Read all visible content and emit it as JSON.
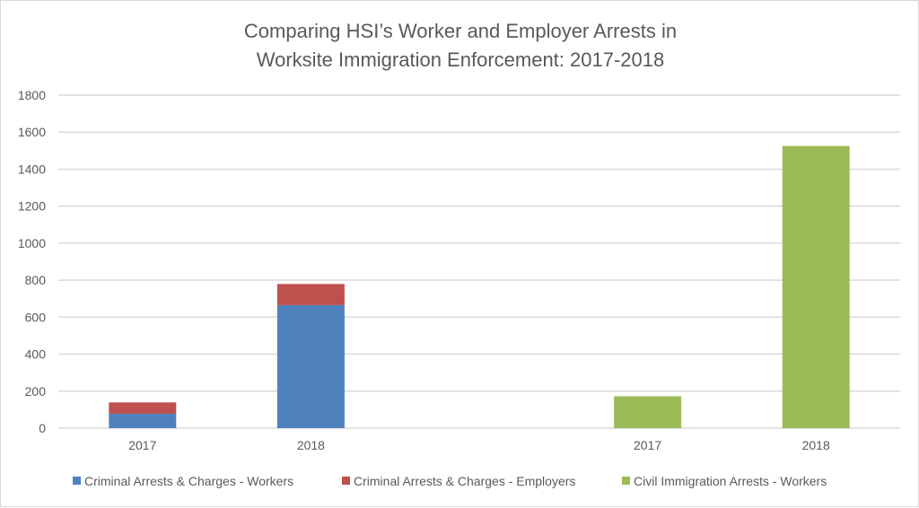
{
  "chart_data": {
    "type": "bar",
    "stacked": true,
    "title": [
      "Comparing HSI’s Worker and Employer Arrests in",
      "Worksite Immigration Enforcement: 2017-2018"
    ],
    "categories": [
      "2017",
      "2018",
      "",
      "2017",
      "2018"
    ],
    "series": [
      {
        "name": "Criminal Arrests & Charges - Workers",
        "color": "#4f81bd",
        "values": [
          78,
          665,
          null,
          null,
          null
        ]
      },
      {
        "name": "Criminal Arrests & Charges - Employers",
        "color": "#c0504d",
        "values": [
          61,
          114,
          null,
          null,
          null
        ]
      },
      {
        "name": "Civil Immigration Arrests - Workers",
        "color": "#9bbb59",
        "values": [
          null,
          null,
          null,
          172,
          1525
        ]
      }
    ],
    "ylim": [
      0,
      1800
    ],
    "yticks": [
      0,
      200,
      400,
      600,
      800,
      1000,
      1200,
      1400,
      1600,
      1800
    ],
    "grid": true,
    "legend": "bottom",
    "xlabel": "",
    "ylabel": ""
  }
}
